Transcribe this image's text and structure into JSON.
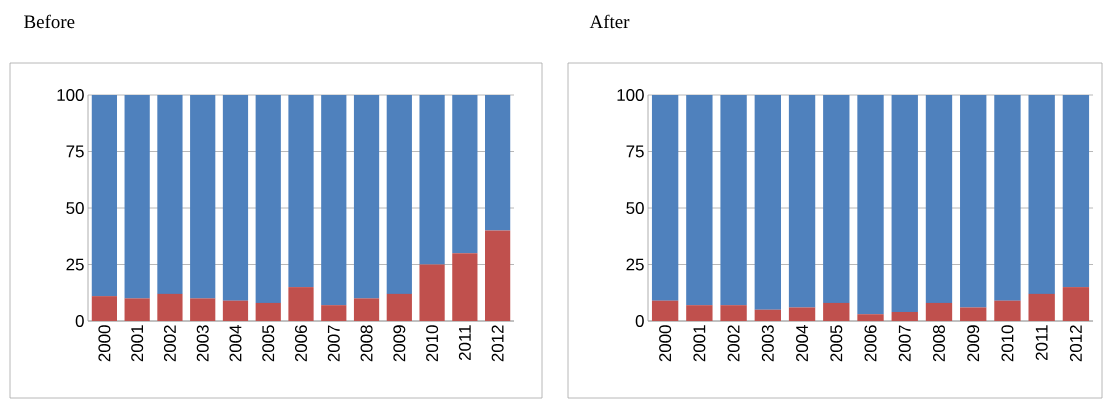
{
  "chart_data": [
    {
      "type": "bar",
      "stacked": true,
      "title": "Before",
      "categories": [
        "2000",
        "2001",
        "2002",
        "2003",
        "2004",
        "2005",
        "2006",
        "2007",
        "2008",
        "2009",
        "2010",
        "2011",
        "2012"
      ],
      "series": [
        {
          "color": "#c0504d",
          "values": [
            11,
            10,
            12,
            10,
            9,
            8,
            15,
            7,
            10,
            12,
            25,
            30,
            40
          ]
        },
        {
          "color": "#4f81bd",
          "values": [
            89,
            90,
            88,
            90,
            91,
            92,
            85,
            93,
            90,
            88,
            75,
            70,
            60
          ]
        }
      ],
      "ylim": [
        0,
        100
      ],
      "yticks": [
        0,
        25,
        50,
        75,
        100
      ],
      "grid": "y"
    },
    {
      "type": "bar",
      "stacked": true,
      "title": "After",
      "categories": [
        "2000",
        "2001",
        "2002",
        "2003",
        "2004",
        "2005",
        "2006",
        "2007",
        "2008",
        "2009",
        "2010",
        "2011",
        "2012"
      ],
      "series": [
        {
          "color": "#c0504d",
          "values": [
            9,
            7,
            7,
            5,
            6,
            8,
            3,
            4,
            8,
            6,
            9,
            12,
            15
          ]
        },
        {
          "color": "#4f81bd",
          "values": [
            91,
            93,
            93,
            95,
            94,
            92,
            97,
            96,
            92,
            94,
            91,
            88,
            85
          ]
        }
      ],
      "ylim": [
        0,
        100
      ],
      "yticks": [
        0,
        25,
        50,
        75,
        100
      ],
      "grid": "y"
    }
  ]
}
